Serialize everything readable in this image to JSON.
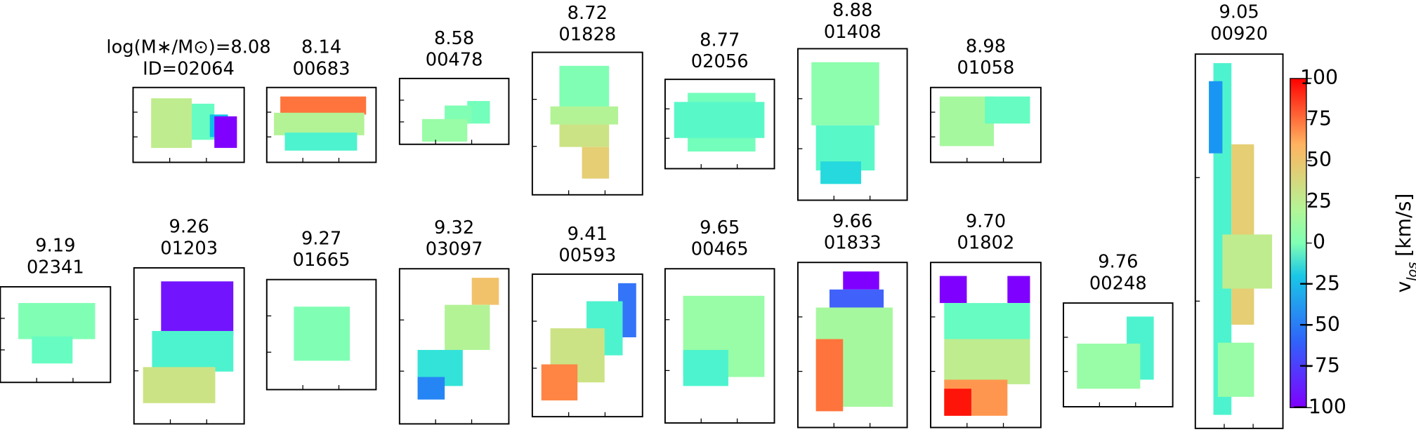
{
  "panels": [
    {
      "mass": "log(M∗/M⊙)=8.08",
      "id": "ID=02064"
    },
    {
      "mass": "8.14",
      "id": "00683"
    },
    {
      "mass": "8.58",
      "id": "00478"
    },
    {
      "mass": "8.72",
      "id": "01828"
    },
    {
      "mass": "8.77",
      "id": "02056"
    },
    {
      "mass": "8.88",
      "id": "01408"
    },
    {
      "mass": "8.98",
      "id": "01058"
    },
    {
      "mass": "9.05",
      "id": "00920"
    },
    {
      "mass": "9.19",
      "id": "02341"
    },
    {
      "mass": "9.26",
      "id": "01203"
    },
    {
      "mass": "9.27",
      "id": "01665"
    },
    {
      "mass": "9.32",
      "id": "03097"
    },
    {
      "mass": "9.41",
      "id": "00593"
    },
    {
      "mass": "9.65",
      "id": "00465"
    },
    {
      "mass": "9.66",
      "id": "01833"
    },
    {
      "mass": "9.70",
      "id": "01802"
    },
    {
      "mass": "9.76",
      "id": "00248"
    }
  ],
  "colorbar": {
    "label": "v",
    "label_sub": "los",
    "label_unit": "[km/s]",
    "lim": [
      -100,
      100
    ],
    "ticks": [
      {
        "value": -100,
        "label": "−100"
      },
      {
        "value": -75,
        "label": "−75"
      },
      {
        "value": -50,
        "label": "−50"
      },
      {
        "value": -25,
        "label": "−25"
      },
      0,
      25,
      50,
      75,
      100
    ]
  }
}
